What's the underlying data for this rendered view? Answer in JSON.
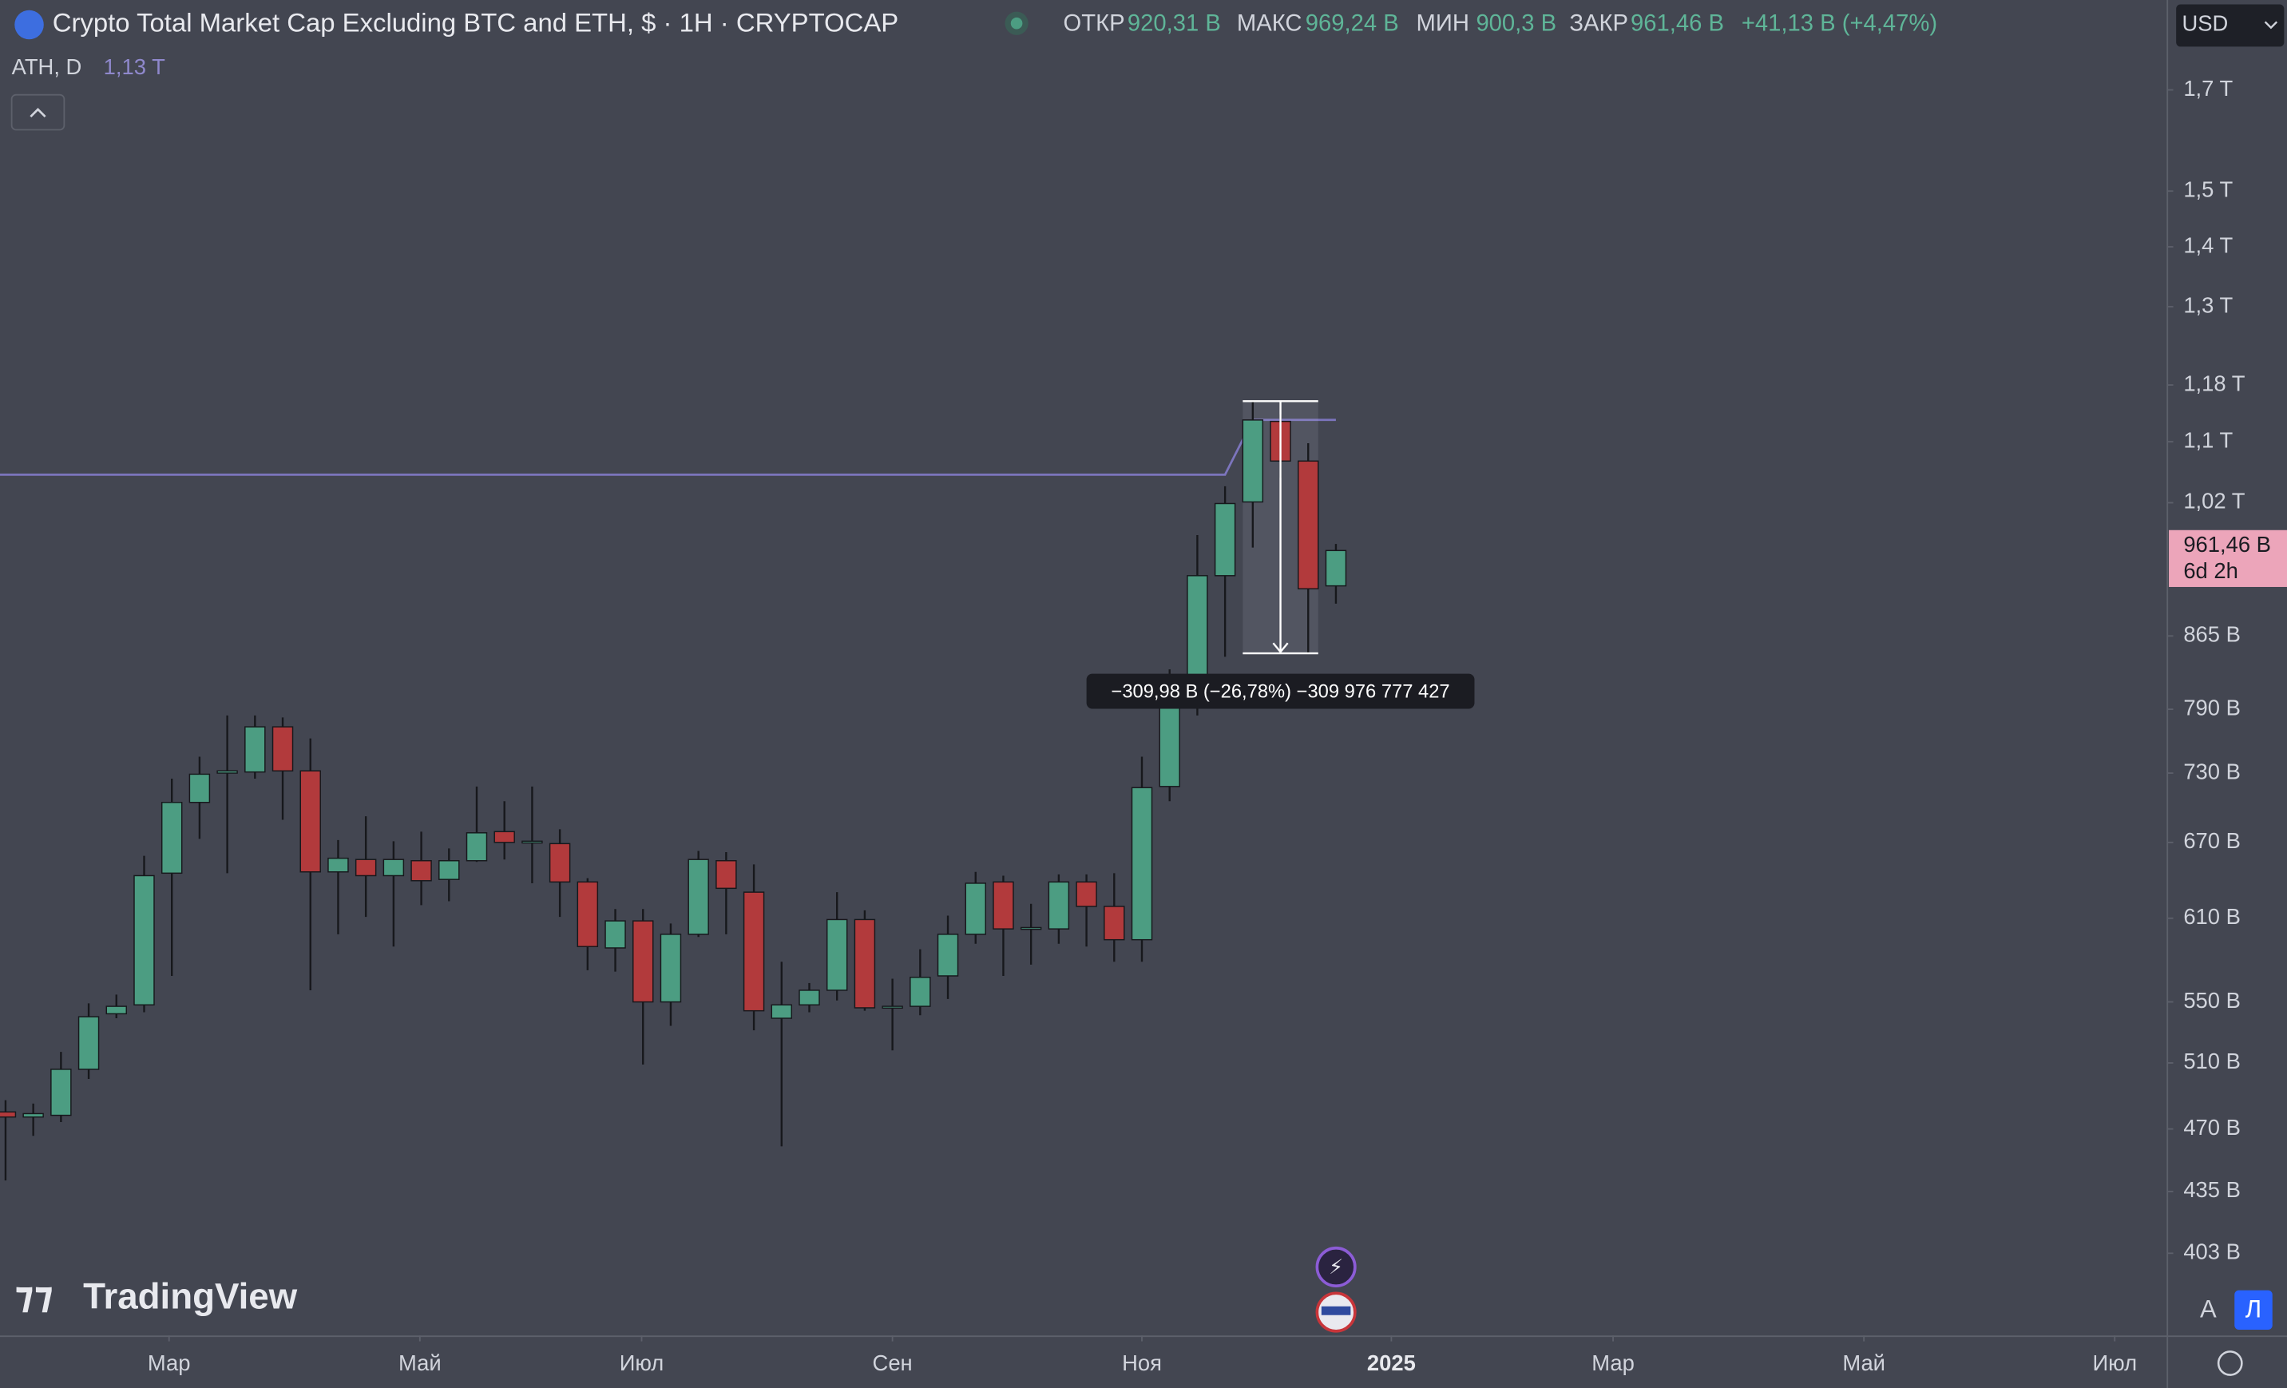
{
  "chart_data": {
    "type": "candlestick",
    "title": "Crypto Total Market Cap Excluding BTC and ETH, $ · 1H · CRYPTOCAP",
    "legend": {
      "open_label": "ОТКР",
      "open": "920,31 B",
      "high_label": "МАКС",
      "high": "969,24 B",
      "low_label": "МИН",
      "low": "900,3 B",
      "close_label": "ЗАКР",
      "close": "961,46 B",
      "change": "+41,13 B (+4,47%)"
    },
    "currency": "USD",
    "up_color": "#4c9d82",
    "down_color": "#b23a3c",
    "wick_color": "#17181c",
    "log_scale": true,
    "grid": false,
    "open": [
      480,
      477,
      478,
      506,
      542,
      548,
      645,
      704,
      730,
      731,
      773,
      732,
      646,
      656,
      643,
      655,
      640,
      655,
      679,
      670,
      669,
      638,
      588,
      608,
      550,
      598,
      655,
      630,
      539,
      548,
      558,
      609,
      546,
      547,
      568,
      598,
      638,
      602,
      602,
      638,
      619,
      594,
      718,
      797,
      932,
      1021,
      1128,
      1074,
      920.31
    ],
    "high": [
      487,
      485,
      517,
      549,
      555,
      659,
      725,
      745,
      784,
      784,
      782,
      762,
      672,
      692,
      671,
      679,
      665,
      718,
      705,
      718,
      681,
      641,
      617,
      617,
      606,
      663,
      662,
      652,
      578,
      563,
      630,
      616,
      566,
      587,
      612,
      646,
      643,
      621,
      644,
      644,
      645,
      745,
      830,
      980,
      1041,
      1156.6,
      1138,
      1098,
      969.24
    ],
    "low": [
      441,
      466,
      474,
      500,
      539,
      543,
      568,
      673,
      645,
      725,
      689,
      558,
      598,
      611,
      589,
      620,
      623,
      654,
      656,
      637,
      611,
      572,
      571,
      509,
      534,
      596,
      598,
      531,
      460,
      543,
      551,
      544,
      518,
      541,
      552,
      591,
      568,
      576,
      591,
      589,
      578,
      578,
      705,
      784,
      843,
      965,
      1052,
      846.6,
      900.3
    ],
    "close": [
      477,
      479,
      506,
      540,
      547,
      643,
      704,
      729,
      732,
      773,
      732,
      646,
      657,
      643,
      656,
      639,
      655,
      678,
      670,
      671,
      638,
      589,
      608,
      550,
      598,
      656,
      633,
      544,
      548,
      558,
      609,
      546,
      547,
      567,
      598,
      637,
      602,
      603,
      638,
      619,
      594,
      717,
      797,
      932,
      1019,
      1130,
      1074,
      917,
      961.46
    ],
    "ath": {
      "name": "ATH, D",
      "value_label": "1,13 T",
      "color": "#7c75bd",
      "values": [
        1056,
        1056,
        1056,
        1056,
        1056,
        1056,
        1056,
        1056,
        1056,
        1056,
        1056,
        1056,
        1056,
        1056,
        1056,
        1056,
        1056,
        1056,
        1056,
        1056,
        1056,
        1056,
        1056,
        1056,
        1056,
        1056,
        1056,
        1056,
        1056,
        1056,
        1056,
        1056,
        1056,
        1056,
        1056,
        1056,
        1056,
        1056,
        1056,
        1056,
        1056,
        1056,
        1056,
        1056,
        1056,
        1130,
        1130,
        1130,
        1130
      ]
    },
    "price_label": {
      "value": 961.46,
      "label": "961,46 B",
      "countdown": "6d 2h"
    },
    "measure": {
      "from": 1156.6,
      "to": 846.6,
      "label": "−309,98 B (−26,78%) −309 976 777 427"
    },
    "ylim": [
      364,
      1900
    ],
    "yticks": [
      {
        "value": 1700,
        "label": "1,7 T"
      },
      {
        "value": 1500,
        "label": "1,5 T"
      },
      {
        "value": 1400,
        "label": "1,4 T"
      },
      {
        "value": 1300,
        "label": "1,3 T"
      },
      {
        "value": 1180,
        "label": "1,18 T"
      },
      {
        "value": 1100,
        "label": "1,1 T"
      },
      {
        "value": 1020,
        "label": "1,02 T"
      },
      {
        "value": 865,
        "label": "865 B"
      },
      {
        "value": 790,
        "label": "790 B"
      },
      {
        "value": 730,
        "label": "730 B"
      },
      {
        "value": 670,
        "label": "670 B"
      },
      {
        "value": 610,
        "label": "610 B"
      },
      {
        "value": 550,
        "label": "550 B"
      },
      {
        "value": 510,
        "label": "510 B"
      },
      {
        "value": 470,
        "label": "470 B"
      },
      {
        "value": 435,
        "label": "435 B"
      },
      {
        "value": 403,
        "label": "403 B"
      }
    ],
    "xlim": [
      -0.2,
      78
    ],
    "xticks": [
      {
        "value": 5.9,
        "label": "Мар"
      },
      {
        "value": 14.95,
        "label": "Май"
      },
      {
        "value": 22.95,
        "label": "Июл"
      },
      {
        "value": 32,
        "label": "Сен"
      },
      {
        "value": 41,
        "label": "Ноя"
      },
      {
        "value": 50,
        "label": "2025"
      },
      {
        "value": 58,
        "label": "Мар"
      },
      {
        "value": 67.05,
        "label": "Май"
      },
      {
        "value": 76.1,
        "label": "Июл"
      }
    ],
    "watermark": "TradingView",
    "scale_buttons": [
      "A",
      "Л"
    ]
  }
}
